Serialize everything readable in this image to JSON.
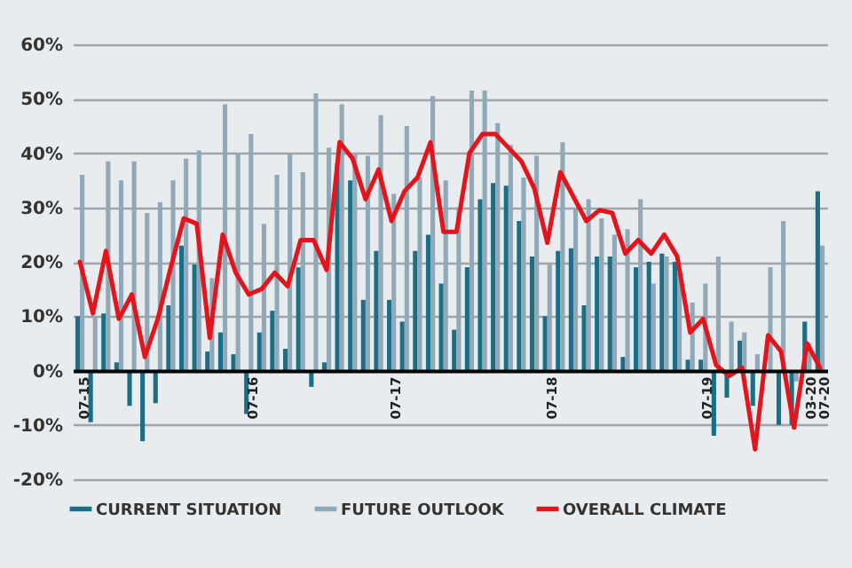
{
  "chart_data": {
    "type": "bar",
    "categories": [
      "07-15",
      null,
      null,
      null,
      null,
      null,
      null,
      null,
      null,
      null,
      null,
      null,
      null,
      "07-16",
      null,
      null,
      null,
      null,
      null,
      null,
      null,
      null,
      null,
      null,
      "07-17",
      null,
      null,
      null,
      null,
      null,
      null,
      null,
      null,
      null,
      null,
      null,
      "07-18",
      null,
      null,
      null,
      null,
      null,
      null,
      null,
      null,
      null,
      null,
      null,
      "07-19",
      null,
      null,
      null,
      null,
      null,
      null,
      null,
      "03-20",
      "07-20"
    ],
    "series": [
      {
        "name": "CURRENT SITUATION",
        "color": "#1a6e85",
        "values": [
          10,
          -9.5,
          10.5,
          1.5,
          -6.5,
          -13,
          -6,
          12,
          23,
          19.5,
          3.5,
          7,
          3,
          -8,
          7,
          11,
          4,
          19,
          -3,
          1.5,
          38,
          35,
          13,
          22,
          13,
          9,
          22,
          25,
          16,
          7.5,
          19,
          31.5,
          34.5,
          34,
          27.5,
          21,
          10,
          22,
          22.5,
          12,
          21,
          21,
          2.5,
          19,
          20,
          21.5,
          20,
          2,
          2,
          -12,
          -5,
          5.5,
          -6.5,
          null,
          -10,
          -10,
          9,
          33
        ]
      },
      {
        "name": "FUTURE OUTLOOK",
        "color": "#8fa9b8",
        "values": [
          36,
          10,
          38.5,
          35,
          38.5,
          29,
          31,
          35,
          39,
          40.5,
          17,
          49,
          40,
          43.5,
          27,
          36,
          40,
          36.5,
          51,
          41,
          49,
          40,
          39.5,
          47,
          32.5,
          45,
          35.5,
          50.5,
          35,
          30,
          51.5,
          51.5,
          45.5,
          41.5,
          35.5,
          39.5,
          19.5,
          42,
          30,
          31.5,
          28,
          25,
          26,
          31.5,
          16,
          21,
          18,
          12.5,
          16,
          21,
          9,
          7,
          3,
          19,
          27.5,
          -2,
          5,
          23
        ]
      },
      {
        "name": "OVERALL CLIMATE",
        "color": "#e3141b",
        "type": "line",
        "values": [
          20,
          10.5,
          22,
          9.5,
          14,
          2.5,
          9.5,
          19,
          28,
          27,
          6,
          25,
          18,
          14,
          15,
          18,
          15.5,
          24,
          24,
          18.5,
          42,
          39,
          31.5,
          37,
          27.5,
          33,
          35.5,
          42,
          25.5,
          25.5,
          40,
          43.5,
          43.5,
          41,
          38.5,
          33.5,
          23.5,
          36.5,
          32,
          27.5,
          29.5,
          29,
          21.5,
          24,
          21.5,
          25,
          21,
          7,
          9.5,
          1,
          -1,
          0.5,
          -14.5,
          6.5,
          3.5,
          -10.5,
          5,
          0.5
        ]
      }
    ],
    "ylim": [
      -20,
      60
    ],
    "yticks": [
      {
        "value": -20,
        "label": "-20%"
      },
      {
        "value": -10,
        "label": "-10%"
      },
      {
        "value": 0,
        "label": "0%"
      },
      {
        "value": 10,
        "label": "10%"
      },
      {
        "value": 20,
        "label": "20%"
      },
      {
        "value": 30,
        "label": "30%"
      },
      {
        "value": 40,
        "label": "40%"
      },
      {
        "value": 50,
        "label": "50%"
      },
      {
        "value": 60,
        "label": "60%"
      }
    ],
    "grid": "y",
    "legend": "bottom"
  }
}
